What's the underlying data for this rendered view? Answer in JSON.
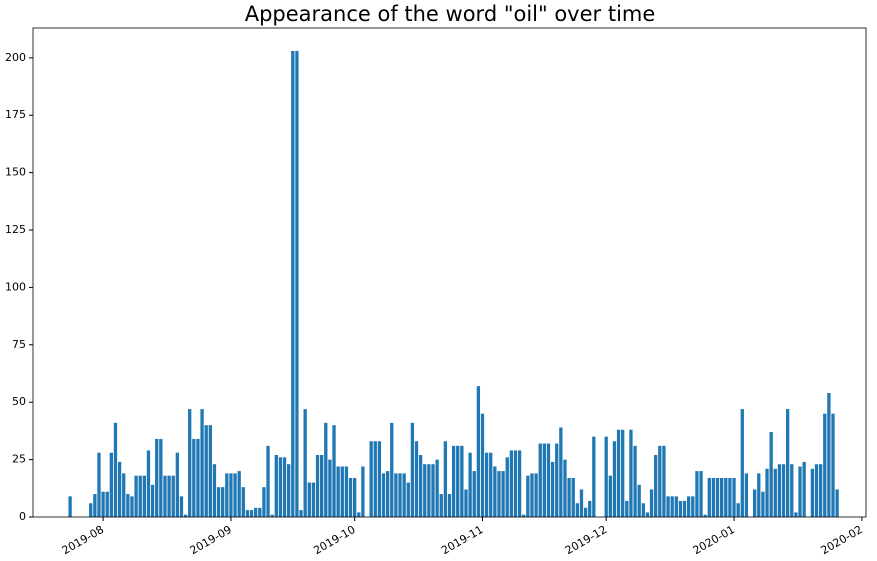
{
  "chart_data": {
    "type": "bar",
    "title": "Appearance of the word \"oil\" over time",
    "color": "#1f77b4",
    "x": [
      "2019-07-24",
      "2019-07-25",
      "2019-07-26",
      "2019-07-27",
      "2019-07-28",
      "2019-07-29",
      "2019-07-30",
      "2019-07-31",
      "2019-08-01",
      "2019-08-02",
      "2019-08-03",
      "2019-08-04",
      "2019-08-05",
      "2019-08-06",
      "2019-08-07",
      "2019-08-08",
      "2019-08-09",
      "2019-08-10",
      "2019-08-11",
      "2019-08-12",
      "2019-08-13",
      "2019-08-14",
      "2019-08-15",
      "2019-08-16",
      "2019-08-17",
      "2019-08-18",
      "2019-08-19",
      "2019-08-20",
      "2019-08-21",
      "2019-08-22",
      "2019-08-23",
      "2019-08-24",
      "2019-08-25",
      "2019-08-26",
      "2019-08-27",
      "2019-08-28",
      "2019-08-29",
      "2019-08-30",
      "2019-08-31",
      "2019-09-01",
      "2019-09-02",
      "2019-09-03",
      "2019-09-04",
      "2019-09-05",
      "2019-09-06",
      "2019-09-07",
      "2019-09-08",
      "2019-09-09",
      "2019-09-10",
      "2019-09-11",
      "2019-09-12",
      "2019-09-13",
      "2019-09-14",
      "2019-09-15",
      "2019-09-16",
      "2019-09-17",
      "2019-09-18",
      "2019-09-19",
      "2019-09-20",
      "2019-09-21",
      "2019-09-22",
      "2019-09-23",
      "2019-09-24",
      "2019-09-25",
      "2019-09-26",
      "2019-09-27",
      "2019-09-28",
      "2019-09-29",
      "2019-09-30",
      "2019-10-01",
      "2019-10-02",
      "2019-10-03",
      "2019-10-04",
      "2019-10-05",
      "2019-10-06",
      "2019-10-07",
      "2019-10-08",
      "2019-10-09",
      "2019-10-10",
      "2019-10-11",
      "2019-10-12",
      "2019-10-13",
      "2019-10-14",
      "2019-10-15",
      "2019-10-16",
      "2019-10-17",
      "2019-10-18",
      "2019-10-19",
      "2019-10-20",
      "2019-10-21",
      "2019-10-22",
      "2019-10-23",
      "2019-10-24",
      "2019-10-25",
      "2019-10-26",
      "2019-10-27",
      "2019-10-28",
      "2019-10-29",
      "2019-10-30",
      "2019-10-31",
      "2019-11-01",
      "2019-11-02",
      "2019-11-03",
      "2019-11-04",
      "2019-11-05",
      "2019-11-06",
      "2019-11-07",
      "2019-11-08",
      "2019-11-09",
      "2019-11-10",
      "2019-11-11",
      "2019-11-12",
      "2019-11-13",
      "2019-11-14",
      "2019-11-15",
      "2019-11-16",
      "2019-11-17",
      "2019-11-18",
      "2019-11-19",
      "2019-11-20",
      "2019-11-21",
      "2019-11-22",
      "2019-11-23",
      "2019-11-24",
      "2019-11-25",
      "2019-11-26",
      "2019-11-27",
      "2019-11-28",
      "2019-11-29",
      "2019-11-30",
      "2019-12-01",
      "2019-12-02",
      "2019-12-03",
      "2019-12-04",
      "2019-12-05",
      "2019-12-06",
      "2019-12-07",
      "2019-12-08",
      "2019-12-09",
      "2019-12-10",
      "2019-12-11",
      "2019-12-12",
      "2019-12-13",
      "2019-12-14",
      "2019-12-15",
      "2019-12-16",
      "2019-12-17",
      "2019-12-18",
      "2019-12-19",
      "2019-12-20",
      "2019-12-21",
      "2019-12-22",
      "2019-12-23",
      "2019-12-24",
      "2019-12-25",
      "2019-12-26",
      "2019-12-27",
      "2019-12-28",
      "2019-12-29",
      "2019-12-30",
      "2019-12-31",
      "2020-01-01",
      "2020-01-02",
      "2020-01-03",
      "2020-01-04",
      "2020-01-05",
      "2020-01-06",
      "2020-01-07",
      "2020-01-08",
      "2020-01-09",
      "2020-01-10",
      "2020-01-11",
      "2020-01-12",
      "2020-01-13",
      "2020-01-14",
      "2020-01-15",
      "2020-01-16",
      "2020-01-17",
      "2020-01-18",
      "2020-01-19",
      "2020-01-20",
      "2020-01-21",
      "2020-01-22",
      "2020-01-23",
      "2020-01-24",
      "2020-01-25",
      "2020-01-26"
    ],
    "values": [
      9,
      0,
      0,
      0,
      0,
      6,
      10,
      28,
      11,
      11,
      28,
      41,
      24,
      19,
      10,
      9,
      18,
      18,
      18,
      29,
      14,
      34,
      34,
      18,
      18,
      18,
      28,
      9,
      1,
      47,
      34,
      34,
      47,
      40,
      40,
      23,
      13,
      13,
      19,
      19,
      19,
      20,
      13,
      3,
      3,
      4,
      4,
      13,
      31,
      1,
      27,
      26,
      26,
      23,
      203,
      203,
      3,
      47,
      15,
      15,
      27,
      27,
      41,
      25,
      40,
      22,
      22,
      22,
      17,
      17,
      2,
      22,
      0,
      33,
      33,
      33,
      19,
      20,
      41,
      19,
      19,
      19,
      15,
      41,
      33,
      27,
      23,
      23,
      23,
      25,
      10,
      33,
      10,
      31,
      31,
      31,
      12,
      28,
      20,
      57,
      45,
      28,
      28,
      22,
      20,
      20,
      26,
      29,
      29,
      29,
      1,
      18,
      19,
      19,
      32,
      32,
      32,
      24,
      32,
      39,
      25,
      17,
      17,
      6,
      12,
      4,
      7,
      35,
      0,
      0,
      35,
      18,
      33,
      38,
      38,
      7,
      38,
      31,
      14,
      6,
      2,
      12,
      27,
      31,
      31,
      9,
      9,
      9,
      7,
      7,
      9,
      9,
      20,
      20,
      1,
      17,
      17,
      17,
      17,
      17,
      17,
      17,
      6,
      47,
      19,
      0,
      12,
      19,
      11,
      21,
      37,
      21,
      23,
      23,
      47,
      23,
      2,
      22,
      24,
      0,
      21,
      23,
      23,
      45,
      54,
      45,
      12
    ],
    "xlim": [
      "2019-07-15",
      "2020-02-02"
    ],
    "xticks": [
      "2019-08",
      "2019-09",
      "2019-10",
      "2019-11",
      "2019-12",
      "2020-01",
      "2020-02"
    ],
    "ylim": [
      0,
      213
    ],
    "yticks": [
      0,
      25,
      50,
      75,
      100,
      125,
      150,
      175,
      200
    ]
  }
}
